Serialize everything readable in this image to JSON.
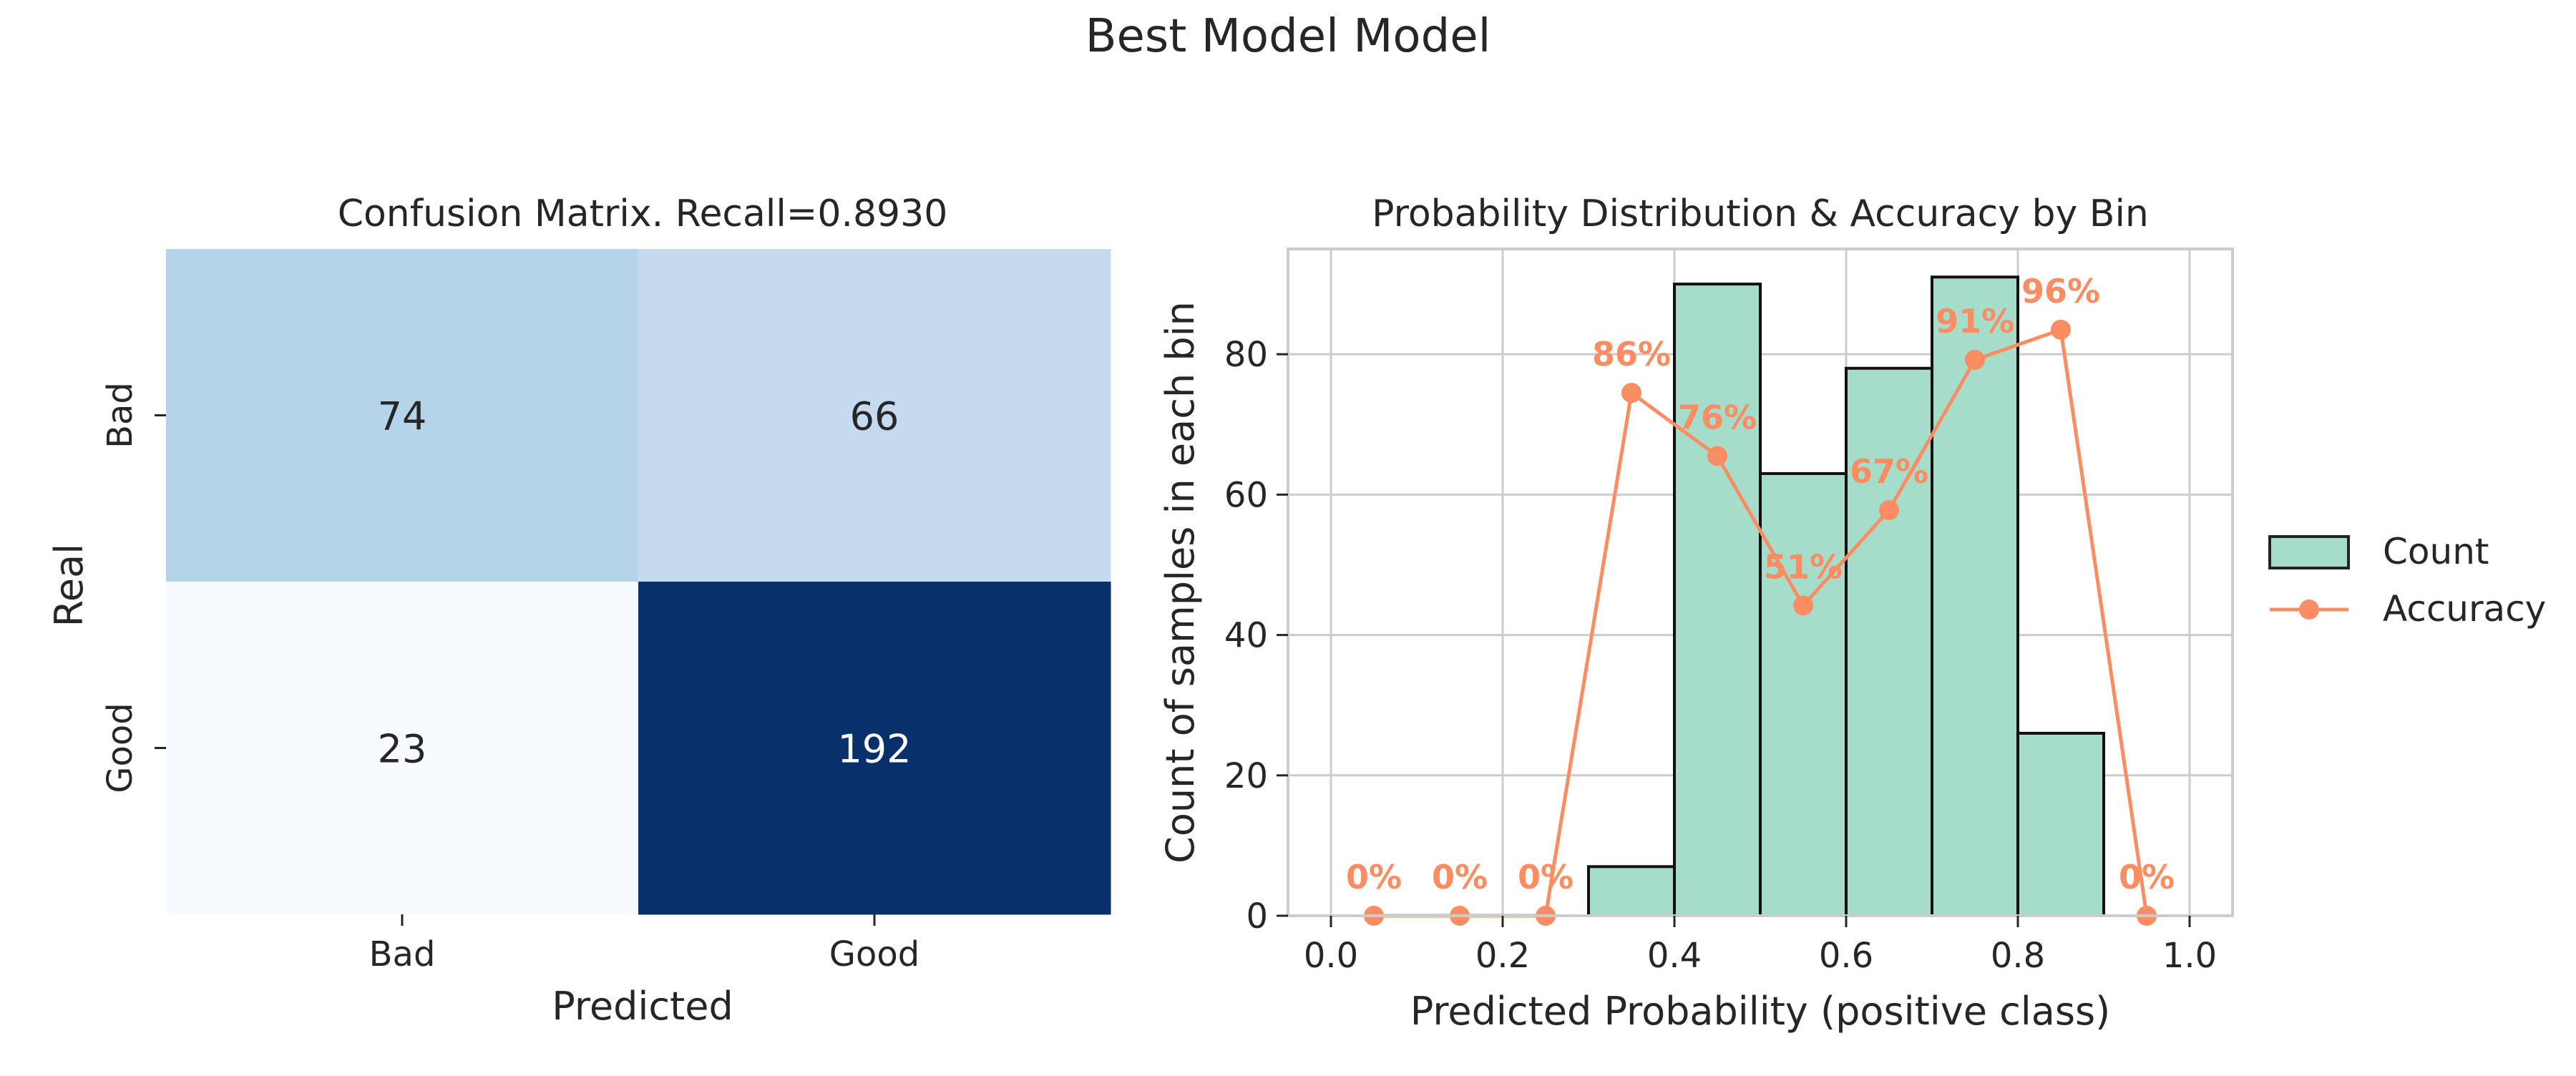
{
  "suptitle": "Best Model Model",
  "chart_data": [
    {
      "type": "heatmap",
      "title": "Confusion Matrix. Recall=0.8930",
      "xlabel": "Predicted",
      "ylabel": "Real",
      "x_categories": [
        "Bad",
        "Good"
      ],
      "y_categories": [
        "Bad",
        "Good"
      ],
      "values": [
        [
          74,
          66
        ],
        [
          23,
          192
        ]
      ],
      "colormap": "Blues"
    },
    {
      "type": "bar",
      "title": "Probability Distribution & Accuracy by Bin",
      "xlabel": "Predicted Probability (positive class)",
      "ylabel": "Count of samples in each bin",
      "xlim": [
        -0.05,
        1.05
      ],
      "ylim": [
        0,
        95
      ],
      "x_ticks": [
        "0.0",
        "0.2",
        "0.4",
        "0.6",
        "0.8",
        "1.0"
      ],
      "y_ticks": [
        "0",
        "20",
        "40",
        "60",
        "80"
      ],
      "grid": true,
      "legend_position": "right",
      "bar_color": "#a6dcca",
      "line_color": "#fc8d62",
      "bins": [
        {
          "x0": 0.0,
          "x1": 0.1,
          "count": 0
        },
        {
          "x0": 0.1,
          "x1": 0.2,
          "count": 0
        },
        {
          "x0": 0.2,
          "x1": 0.3,
          "count": 0
        },
        {
          "x0": 0.3,
          "x1": 0.4,
          "count": 7
        },
        {
          "x0": 0.4,
          "x1": 0.5,
          "count": 90
        },
        {
          "x0": 0.5,
          "x1": 0.6,
          "count": 63
        },
        {
          "x0": 0.6,
          "x1": 0.7,
          "count": 78
        },
        {
          "x0": 0.7,
          "x1": 0.8,
          "count": 91
        },
        {
          "x0": 0.8,
          "x1": 0.9,
          "count": 26
        },
        {
          "x0": 0.9,
          "x1": 1.0,
          "count": 0
        }
      ],
      "series": [
        {
          "name": "Count",
          "type": "bar"
        },
        {
          "name": "Accuracy",
          "type": "line",
          "x": [
            0.05,
            0.15,
            0.25,
            0.35,
            0.45,
            0.55,
            0.65,
            0.75,
            0.85,
            0.95
          ],
          "values": [
            0,
            0,
            0,
            74.5,
            65.5,
            44.2,
            57.8,
            79.2,
            83.5,
            0
          ],
          "labels": [
            "0%",
            "0%",
            "0%",
            "86%",
            "76%",
            "51%",
            "67%",
            "91%",
            "96%",
            "0%"
          ]
        }
      ]
    }
  ]
}
